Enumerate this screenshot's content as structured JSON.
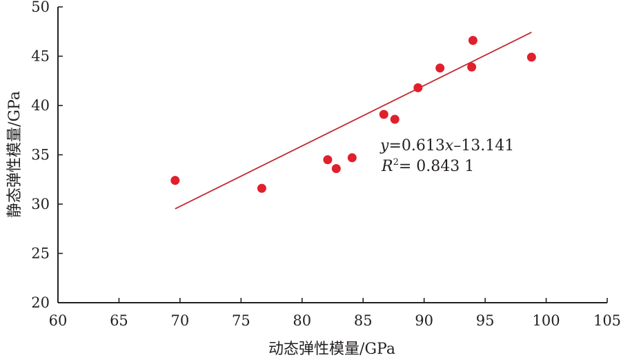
{
  "chart_data": {
    "type": "scatter",
    "title": "",
    "xlabel": "动态弹性模量/GPa",
    "ylabel": "静态弹性模量/GPa",
    "xlim": [
      60,
      105
    ],
    "ylim": [
      20,
      50
    ],
    "xticks": [
      60,
      65,
      70,
      75,
      80,
      85,
      90,
      95,
      100,
      105
    ],
    "yticks": [
      20,
      25,
      30,
      35,
      40,
      45,
      50
    ],
    "grid": false,
    "legend": "none",
    "series": [
      {
        "color": "#e0202c",
        "points": [
          {
            "x": 69.6,
            "y": 32.4
          },
          {
            "x": 76.7,
            "y": 31.6
          },
          {
            "x": 82.1,
            "y": 34.5
          },
          {
            "x": 82.8,
            "y": 33.6
          },
          {
            "x": 84.1,
            "y": 34.7
          },
          {
            "x": 86.7,
            "y": 39.1
          },
          {
            "x": 87.6,
            "y": 38.6
          },
          {
            "x": 89.5,
            "y": 41.8
          },
          {
            "x": 91.3,
            "y": 43.8
          },
          {
            "x": 93.9,
            "y": 43.9
          },
          {
            "x": 94.0,
            "y": 46.6
          },
          {
            "x": 98.8,
            "y": 44.9
          }
        ]
      }
    ],
    "trendline": {
      "slope": 0.613,
      "intercept": -13.141,
      "x_range": [
        69.6,
        98.8
      ],
      "color": "#c1272d",
      "equation": {
        "y_var": "y",
        "eq_part1": "=0.613",
        "x_var": "x",
        "eq_part2": "–13.141",
        "r_var": "R",
        "r_exp": "2",
        "r_value": "= 0.843 1"
      }
    }
  }
}
